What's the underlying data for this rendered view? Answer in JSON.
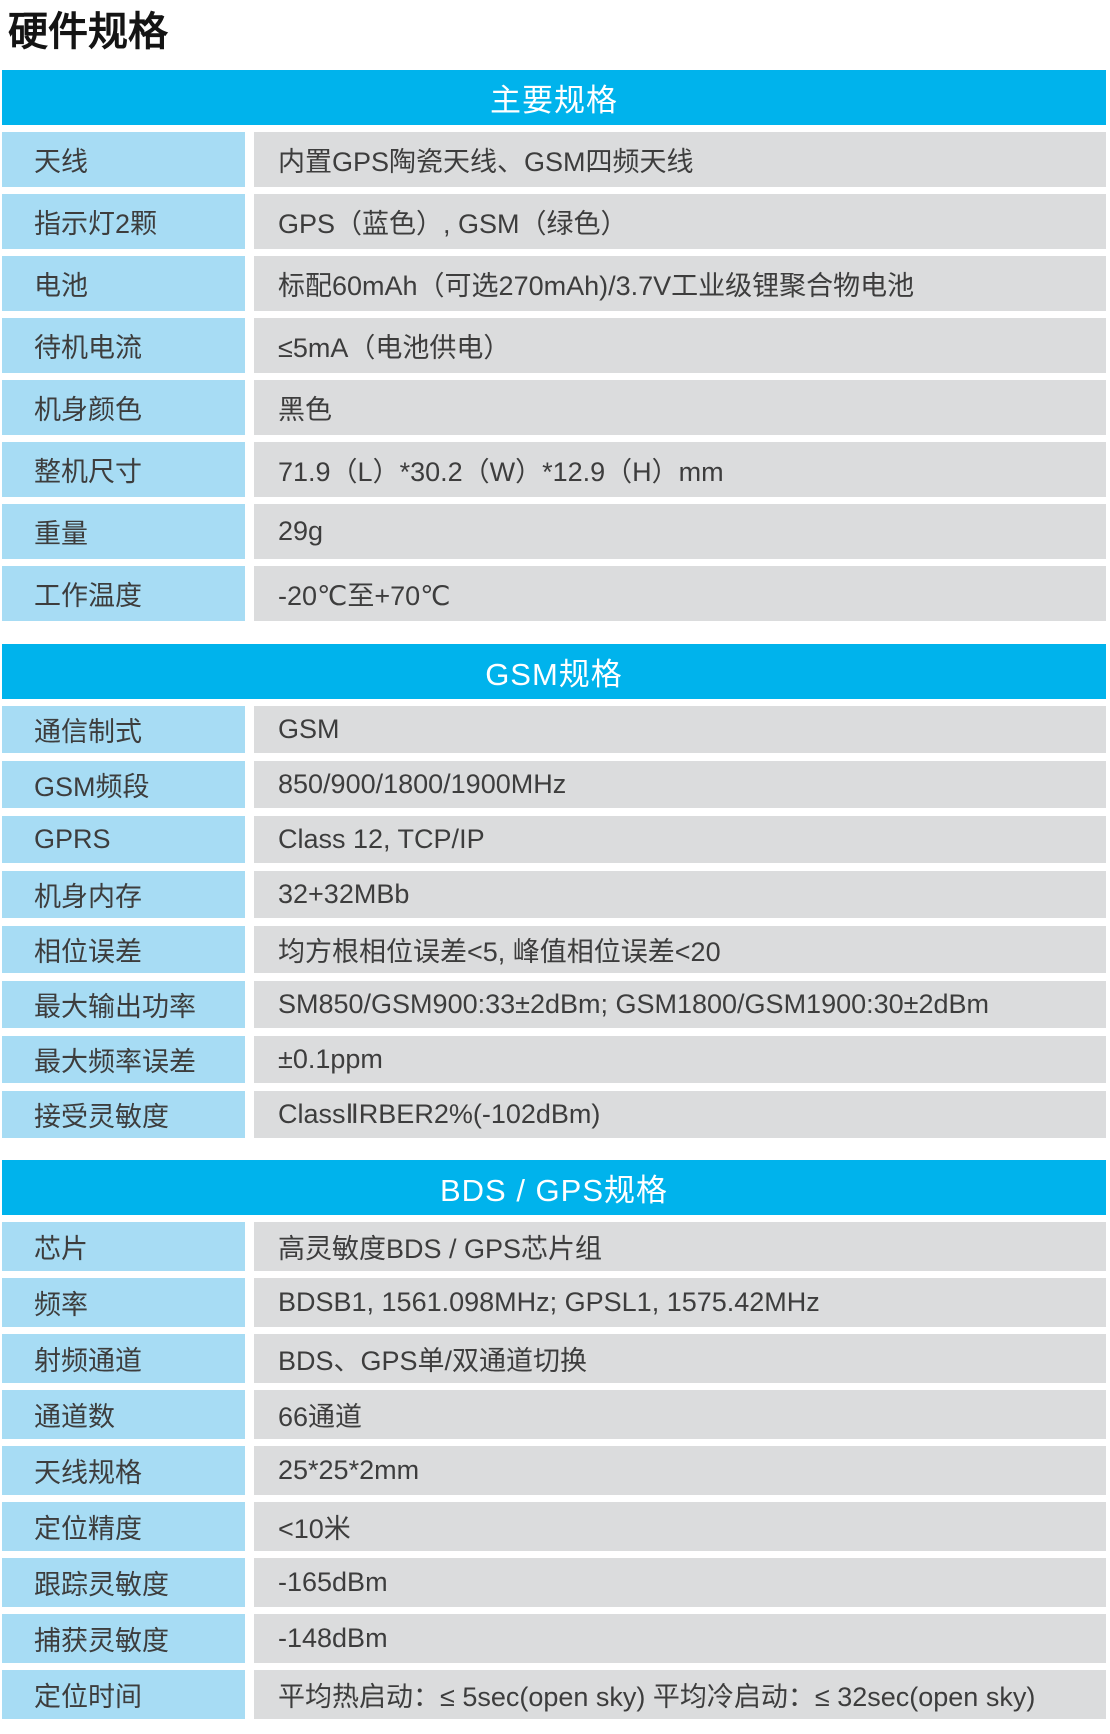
{
  "page_title": "硬件规格",
  "colors": {
    "header_bg": "#00b3ec",
    "header_text": "#ffffff",
    "label_bg": "#a7dcf4",
    "value_bg": "#dbdcdd",
    "cell_text": "#3d3d3d",
    "title_text": "#141414"
  },
  "sections": [
    {
      "title": "主要规格",
      "rows": [
        {
          "label": "天线",
          "value": "内置GPS陶瓷天线、GSM四频天线"
        },
        {
          "label": "指示灯2颗",
          "value": "GPS（蓝色）, GSM（绿色）"
        },
        {
          "label": "电池",
          "value": "标配60mAh（可选270mAh)/3.7V工业级锂聚合物电池"
        },
        {
          "label": "待机电流",
          "value": "≤5mA（电池供电）"
        },
        {
          "label": "机身颜色",
          "value": "黑色"
        },
        {
          "label": "整机尺寸",
          "value": "71.9（L）*30.2（W）*12.9（H）mm"
        },
        {
          "label": "重量",
          "value": "29g"
        },
        {
          "label": "工作温度",
          "value": "-20℃至+70℃"
        }
      ]
    },
    {
      "title": "GSM规格",
      "rows": [
        {
          "label": "通信制式",
          "value": "GSM"
        },
        {
          "label": "GSM频段",
          "value": "850/900/1800/1900MHz"
        },
        {
          "label": "GPRS",
          "value": "Class 12, TCP/IP"
        },
        {
          "label": "机身内存",
          "value": "32+32MBb"
        },
        {
          "label": "相位误差",
          "value": "均方根相位误差<5, 峰值相位误差<20"
        },
        {
          "label": "最大输出功率",
          "value": "SM850/GSM900:33±2dBm; GSM1800/GSM1900:30±2dBm"
        },
        {
          "label": "最大频率误差",
          "value": "±0.1ppm"
        },
        {
          "label": "接受灵敏度",
          "value": "ClassⅡRBER2%(-102dBm)"
        }
      ]
    },
    {
      "title": "BDS / GPS规格",
      "rows": [
        {
          "label": "芯片",
          "value": "高灵敏度BDS / GPS芯片组"
        },
        {
          "label": "频率",
          "value": "BDSB1, 1561.098MHz; GPSL1, 1575.42MHz"
        },
        {
          "label": "射频通道",
          "value": "BDS、GPS单/双通道切换"
        },
        {
          "label": "通道数",
          "value": "66通道"
        },
        {
          "label": "天线规格",
          "value": "25*25*2mm"
        },
        {
          "label": "定位精度",
          "value": "<10米"
        },
        {
          "label": "跟踪灵敏度",
          "value": "-165dBm"
        },
        {
          "label": "捕获灵敏度",
          "value": "-148dBm"
        },
        {
          "label": "定位时间",
          "value": "平均热启动：≤ 5sec(open sky)  平均冷启动：≤ 32sec(open sky)"
        }
      ]
    }
  ]
}
